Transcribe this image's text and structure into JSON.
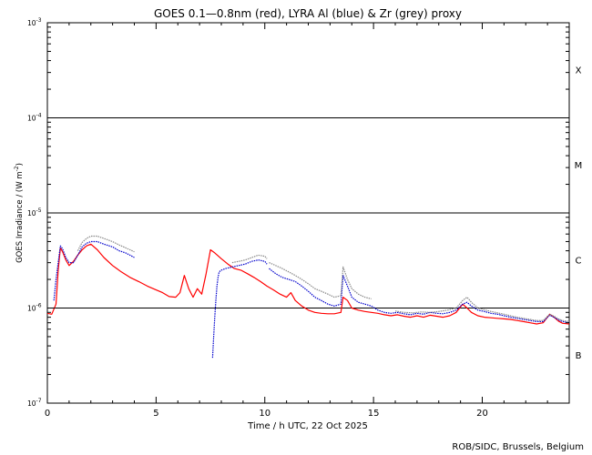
{
  "chart_data": {
    "type": "line",
    "title": "GOES 0.1—0.8nm (red), LYRA Al (blue) & Zr (grey) proxy",
    "xlabel": "Time / h UTC, 22 Oct 2025",
    "ylabel": "GOES Irradiance / (W m",
    "ylabel_exp": "-2",
    "ylabel_close": ")",
    "xlim": [
      0,
      24
    ],
    "ylim": [
      1e-07,
      0.001
    ],
    "yscale": "log",
    "x_ticks": [
      0,
      5,
      10,
      15,
      20
    ],
    "y_ticks": [
      {
        "value": 1e-07,
        "base": "10",
        "exp": "-7"
      },
      {
        "value": 1e-06,
        "base": "10",
        "exp": "-6"
      },
      {
        "value": 1e-05,
        "base": "10",
        "exp": "-5"
      },
      {
        "value": 0.0001,
        "base": "10",
        "exp": "-4"
      },
      {
        "value": 0.001,
        "base": "10",
        "exp": "-3"
      }
    ],
    "flare_class_lines": [
      1e-06,
      1e-05,
      0.0001
    ],
    "flare_classes": [
      {
        "label": "X",
        "value": 0.00032
      },
      {
        "label": "M",
        "value": 3.2e-05
      },
      {
        "label": "C",
        "value": 3.2e-06
      },
      {
        "label": "B",
        "value": 3.2e-07
      }
    ],
    "series": [
      {
        "color": "#ff0000",
        "x": [
          0,
          0.2,
          0.4,
          0.5,
          0.6,
          0.7,
          0.85,
          1.0,
          1.2,
          1.4,
          1.6,
          1.8,
          2.0,
          2.3,
          2.6,
          3.0,
          3.4,
          3.8,
          4.2,
          4.6,
          5.0,
          5.3,
          5.6,
          5.9,
          6.1,
          6.3,
          6.5,
          6.7,
          6.9,
          7.1,
          7.3,
          7.5,
          7.7,
          8.0,
          8.3,
          8.6,
          8.9,
          9.2,
          9.5,
          9.8,
          10.1,
          10.4,
          10.7,
          11.0,
          11.2,
          11.4,
          11.7,
          12.0,
          12.3,
          12.6,
          12.9,
          13.2,
          13.5,
          13.6,
          13.8,
          14.0,
          14.3,
          14.6,
          14.9,
          15.2,
          15.5,
          15.8,
          16.1,
          16.4,
          16.7,
          17.0,
          17.3,
          17.6,
          17.9,
          18.2,
          18.5,
          18.8,
          19.1,
          19.3,
          19.5,
          19.8,
          20.1,
          20.4,
          20.7,
          21.0,
          21.3,
          21.6,
          21.9,
          22.2,
          22.5,
          22.8,
          23.1,
          23.3,
          23.5,
          23.7,
          24.0
        ],
        "y": [
          8.8e-07,
          8.6e-07,
          1.1e-06,
          2.5e-06,
          4.3e-06,
          3.9e-06,
          3.2e-06,
          2.8e-06,
          3.1e-06,
          3.6e-06,
          4.1e-06,
          4.5e-06,
          4.7e-06,
          4.1e-06,
          3.4e-06,
          2.8e-06,
          2.4e-06,
          2.1e-06,
          1.9e-06,
          1.7e-06,
          1.55e-06,
          1.45e-06,
          1.32e-06,
          1.3e-06,
          1.45e-06,
          2.2e-06,
          1.6e-06,
          1.3e-06,
          1.6e-06,
          1.4e-06,
          2.3e-06,
          4.1e-06,
          3.8e-06,
          3.3e-06,
          2.9e-06,
          2.6e-06,
          2.5e-06,
          2.3e-06,
          2.1e-06,
          1.9e-06,
          1.7e-06,
          1.55e-06,
          1.4e-06,
          1.3e-06,
          1.45e-06,
          1.2e-06,
          1.05e-06,
          9.5e-07,
          9e-07,
          8.8e-07,
          8.7e-07,
          8.7e-07,
          9e-07,
          1.3e-06,
          1.2e-06,
          1e-06,
          9.5e-07,
          9.2e-07,
          9e-07,
          8.8e-07,
          8.5e-07,
          8.3e-07,
          8.5e-07,
          8.2e-07,
          8e-07,
          8.3e-07,
          8e-07,
          8.4e-07,
          8.2e-07,
          8e-07,
          8.3e-07,
          9e-07,
          1.1e-06,
          1e-06,
          9e-07,
          8.3e-07,
          8e-07,
          7.9e-07,
          7.8e-07,
          7.7e-07,
          7.6e-07,
          7.4e-07,
          7.2e-07,
          7e-07,
          6.8e-07,
          7e-07,
          8.6e-07,
          8e-07,
          7.3e-07,
          6.9e-07,
          6.8e-07
        ]
      },
      {
        "color": "#0000cc",
        "x": [
          0.3,
          0.4,
          0.5,
          0.6,
          0.7,
          0.85,
          1.0,
          1.2,
          1.4,
          1.6,
          1.8,
          2.0,
          2.3,
          2.6,
          3.0,
          3.3,
          3.6,
          3.8,
          4.0,
          null,
          7.6,
          7.65,
          7.7,
          7.75,
          7.8,
          7.85,
          7.9,
          8.0,
          8.2,
          8.5,
          8.8,
          9.1,
          9.4,
          9.7,
          10.0,
          10.1,
          null,
          10.2,
          10.5,
          10.8,
          11.1,
          11.4,
          11.7,
          12.0,
          12.3,
          12.6,
          12.9,
          13.2,
          13.5,
          13.6,
          13.8,
          14.0,
          14.3,
          14.6,
          14.9,
          15.2,
          15.5,
          15.8,
          16.1,
          16.4,
          16.7,
          17.0,
          17.3,
          17.6,
          17.9,
          18.2,
          18.5,
          18.8,
          19.1,
          19.3,
          19.5,
          19.8,
          20.1,
          20.4,
          20.7,
          21.0,
          21.3,
          21.6,
          21.9,
          22.2,
          22.5,
          22.8,
          23.1,
          23.3,
          23.5,
          23.7,
          24.0
        ],
        "y": [
          1.2e-06,
          2e-06,
          3e-06,
          4.5e-06,
          4.2e-06,
          3.4e-06,
          3e-06,
          3e-06,
          3.6e-06,
          4.4e-06,
          4.8e-06,
          5e-06,
          5e-06,
          4.7e-06,
          4.4e-06,
          4e-06,
          3.8e-06,
          3.6e-06,
          3.4e-06,
          null,
          3e-07,
          5e-07,
          8e-07,
          1.2e-06,
          1.7e-06,
          2.1e-06,
          2.4e-06,
          2.5e-06,
          2.6e-06,
          2.7e-06,
          2.8e-06,
          2.9e-06,
          3.1e-06,
          3.2e-06,
          3.1e-06,
          2.9e-06,
          null,
          2.6e-06,
          2.3e-06,
          2.1e-06,
          2e-06,
          1.9e-06,
          1.7e-06,
          1.5e-06,
          1.3e-06,
          1.2e-06,
          1.1e-06,
          1.05e-06,
          1.1e-06,
          2.2e-06,
          1.7e-06,
          1.3e-06,
          1.15e-06,
          1.1e-06,
          1.05e-06,
          9.5e-07,
          9e-07,
          8.8e-07,
          9e-07,
          8.7e-07,
          8.5e-07,
          8.8e-07,
          8.6e-07,
          9e-07,
          8.8e-07,
          8.7e-07,
          9e-07,
          9.5e-07,
          1.1e-06,
          1.15e-06,
          1.05e-06,
          9.5e-07,
          9.2e-07,
          8.8e-07,
          8.6e-07,
          8.3e-07,
          8e-07,
          7.8e-07,
          7.6e-07,
          7.4e-07,
          7.2e-07,
          7.2e-07,
          8.4e-07,
          8e-07,
          7.5e-07,
          7.2e-07,
          7e-07
        ]
      },
      {
        "color": "#888888",
        "x": [
          1.4,
          1.6,
          1.8,
          2.0,
          2.3,
          2.6,
          3.0,
          3.3,
          3.6,
          3.8,
          4.0,
          null,
          8.5,
          8.8,
          9.1,
          9.4,
          9.7,
          10.0,
          10.1,
          null,
          10.2,
          10.5,
          10.8,
          11.1,
          11.4,
          11.7,
          12.0,
          12.3,
          12.6,
          12.9,
          13.2,
          13.5,
          13.6,
          13.8,
          14.0,
          14.3,
          14.6,
          14.9,
          null,
          16.0,
          16.4,
          16.8,
          17.2,
          17.6,
          18.0,
          18.4,
          18.8,
          19.1,
          19.3,
          19.5,
          19.8,
          20.1,
          20.4,
          20.7,
          21.0,
          21.3,
          21.6,
          21.9,
          22.2,
          22.5,
          22.8,
          23.1,
          23.3,
          23.5,
          23.7,
          24.0
        ],
        "y": [
          4e-06,
          4.9e-06,
          5.4e-06,
          5.7e-06,
          5.7e-06,
          5.4e-06,
          5e-06,
          4.6e-06,
          4.3e-06,
          4.1e-06,
          3.9e-06,
          null,
          3e-06,
          3.1e-06,
          3.2e-06,
          3.4e-06,
          3.6e-06,
          3.5e-06,
          3.3e-06,
          null,
          3e-06,
          2.8e-06,
          2.6e-06,
          2.4e-06,
          2.2e-06,
          2e-06,
          1.8e-06,
          1.6e-06,
          1.5e-06,
          1.4e-06,
          1.3e-06,
          1.35e-06,
          2.7e-06,
          2e-06,
          1.6e-06,
          1.4e-06,
          1.3e-06,
          1.25e-06,
          null,
          9.3e-07,
          9e-07,
          8.9e-07,
          9.1e-07,
          9e-07,
          9.2e-07,
          9.5e-07,
          1e-06,
          1.2e-06,
          1.3e-06,
          1.15e-06,
          1e-06,
          9.6e-07,
          9.2e-07,
          8.9e-07,
          8.6e-07,
          8.3e-07,
          8e-07,
          7.8e-07,
          7.6e-07,
          7.4e-07,
          7.4e-07,
          8.6e-07,
          8.2e-07,
          7.7e-07,
          7.4e-07,
          7.2e-07
        ]
      }
    ],
    "grid": false,
    "legend": "none"
  },
  "footer": "ROB/SIDC, Brussels, Belgium"
}
